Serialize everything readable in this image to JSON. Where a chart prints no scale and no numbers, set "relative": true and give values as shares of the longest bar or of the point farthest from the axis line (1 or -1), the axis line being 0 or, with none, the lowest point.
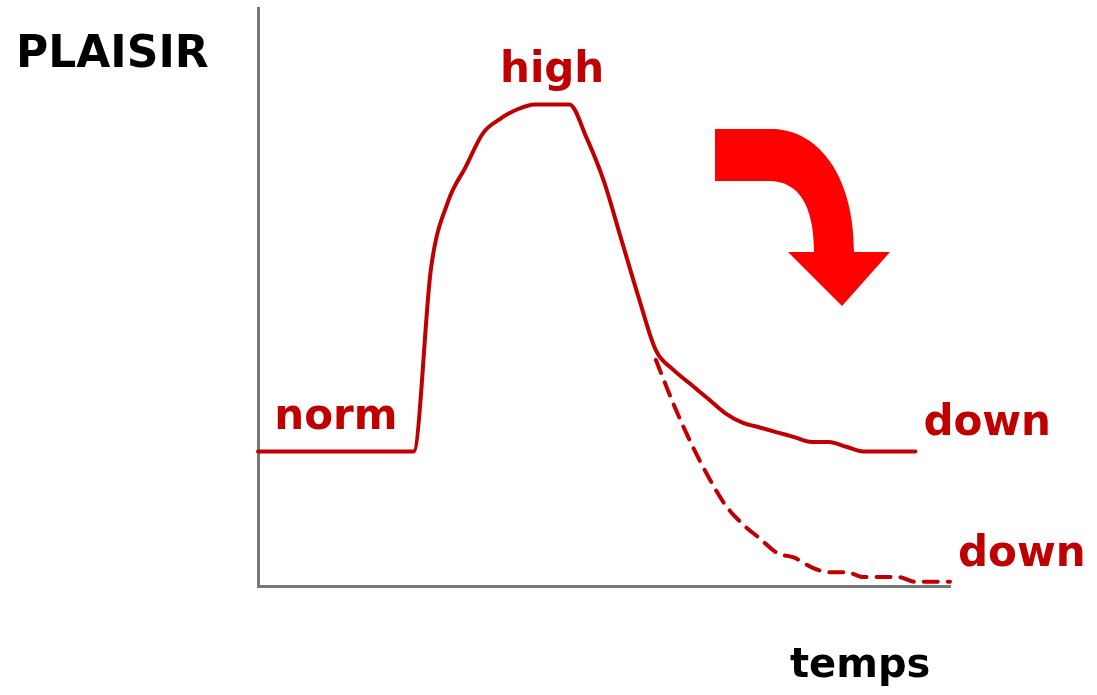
{
  "chart_data": {
    "type": "line",
    "relative": true,
    "ylabel": "PLAISIR",
    "xlabel": "temps",
    "legend": false,
    "grid": false,
    "marker": "none",
    "categories": [
      null,
      null,
      null,
      null,
      null,
      null,
      null,
      null,
      null,
      null,
      null,
      null,
      null,
      null,
      null,
      null,
      null,
      null,
      null,
      null,
      null,
      null,
      null,
      null,
      null,
      null,
      null,
      null,
      null,
      null,
      null,
      null,
      null,
      null,
      null,
      null,
      null,
      null,
      null,
      null,
      null
    ],
    "series": [
      {
        "name": "down",
        "color": "#c00000",
        "line_style": "solid",
        "values": [
          0.28,
          0.28,
          0.28,
          0.28,
          0.28,
          0.28,
          0.28,
          0.28,
          0.28,
          0.28,
          0.66,
          0.8,
          0.87,
          0.94,
          0.97,
          0.99,
          1,
          1,
          1,
          0.93,
          0.84,
          0.72,
          0.6,
          0.49,
          0.45,
          0.42,
          0.39,
          0.36,
          0.34,
          0.33,
          0.32,
          0.31,
          0.3,
          0.3,
          0.29,
          0.28,
          0.28,
          0.28,
          0.28,
          null,
          null
        ]
      },
      {
        "name": "down",
        "color": "#c00000",
        "line_style": "dashed",
        "values": [
          null,
          null,
          null,
          null,
          null,
          null,
          null,
          null,
          null,
          null,
          null,
          null,
          null,
          null,
          null,
          null,
          null,
          null,
          null,
          null,
          null,
          null,
          null,
          0.47,
          0.38,
          0.3,
          0.23,
          0.17,
          0.13,
          0.1,
          0.07,
          0.06,
          0.04,
          0.03,
          0.03,
          0.02,
          0.02,
          0.02,
          0.01,
          0.01,
          0.01
        ]
      }
    ],
    "annotations": [
      {
        "text": "norm",
        "y": 0.28
      },
      {
        "text": "high",
        "y": 1
      }
    ]
  }
}
